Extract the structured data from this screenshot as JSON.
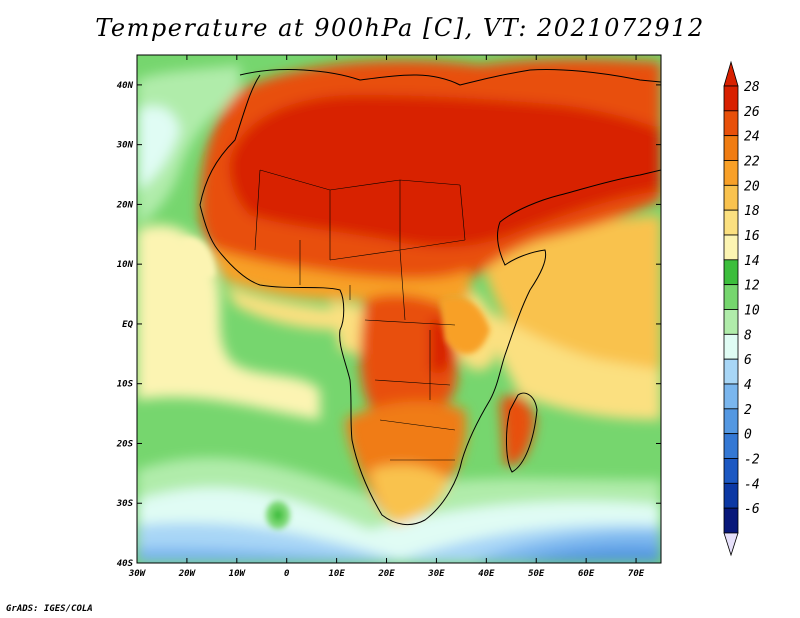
{
  "title": "Temperature at 900hPa [C], VT: 2021072912",
  "credit": "GrADS: IGES/COLA",
  "map": {
    "lon_range": [
      -30,
      75
    ],
    "lat_range": [
      -40,
      45
    ],
    "lon_ticks": [
      {
        "v": -30,
        "label": "30W"
      },
      {
        "v": -20,
        "label": "20W"
      },
      {
        "v": -10,
        "label": "10W"
      },
      {
        "v": 0,
        "label": "0"
      },
      {
        "v": 10,
        "label": "10E"
      },
      {
        "v": 20,
        "label": "20E"
      },
      {
        "v": 30,
        "label": "30E"
      },
      {
        "v": 40,
        "label": "40E"
      },
      {
        "v": 50,
        "label": "50E"
      },
      {
        "v": 60,
        "label": "60E"
      },
      {
        "v": 70,
        "label": "70E"
      }
    ],
    "lat_ticks": [
      {
        "v": 40,
        "label": "40N"
      },
      {
        "v": 30,
        "label": "30N"
      },
      {
        "v": 20,
        "label": "20N"
      },
      {
        "v": 10,
        "label": "10N"
      },
      {
        "v": 0,
        "label": "EQ"
      },
      {
        "v": -10,
        "label": "10S"
      },
      {
        "v": -20,
        "label": "20S"
      },
      {
        "v": -30,
        "label": "30S"
      },
      {
        "v": -40,
        "label": "40S"
      }
    ]
  },
  "colorbar": {
    "levels": [
      {
        "label": "28",
        "color": "#d82000"
      },
      {
        "label": "26",
        "color": "#e8500a"
      },
      {
        "label": "24",
        "color": "#f07c12"
      },
      {
        "label": "22",
        "color": "#f8a028"
      },
      {
        "label": "20",
        "color": "#f9c24e"
      },
      {
        "label": "18",
        "color": "#fbe080"
      },
      {
        "label": "16",
        "color": "#fcf4b2"
      },
      {
        "label": "14",
        "color": "#3cbe3c"
      },
      {
        "label": "12",
        "color": "#76d66e"
      },
      {
        "label": "10",
        "color": "#b0ecaa"
      },
      {
        "label": "8",
        "color": "#e0fcf4"
      },
      {
        "label": "6",
        "color": "#a8d6f6"
      },
      {
        "label": "4",
        "color": "#7ab6ee"
      },
      {
        "label": "2",
        "color": "#5498e2"
      },
      {
        "label": "0",
        "color": "#3478d4"
      },
      {
        "label": "-2",
        "color": "#1c58c2"
      },
      {
        "label": "-4",
        "color": "#0c38a4"
      },
      {
        "label": "-6",
        "color": "#08187a"
      }
    ],
    "top_cap_color": "#d82000",
    "bottom_cap_color": "#e6e0fa"
  }
}
